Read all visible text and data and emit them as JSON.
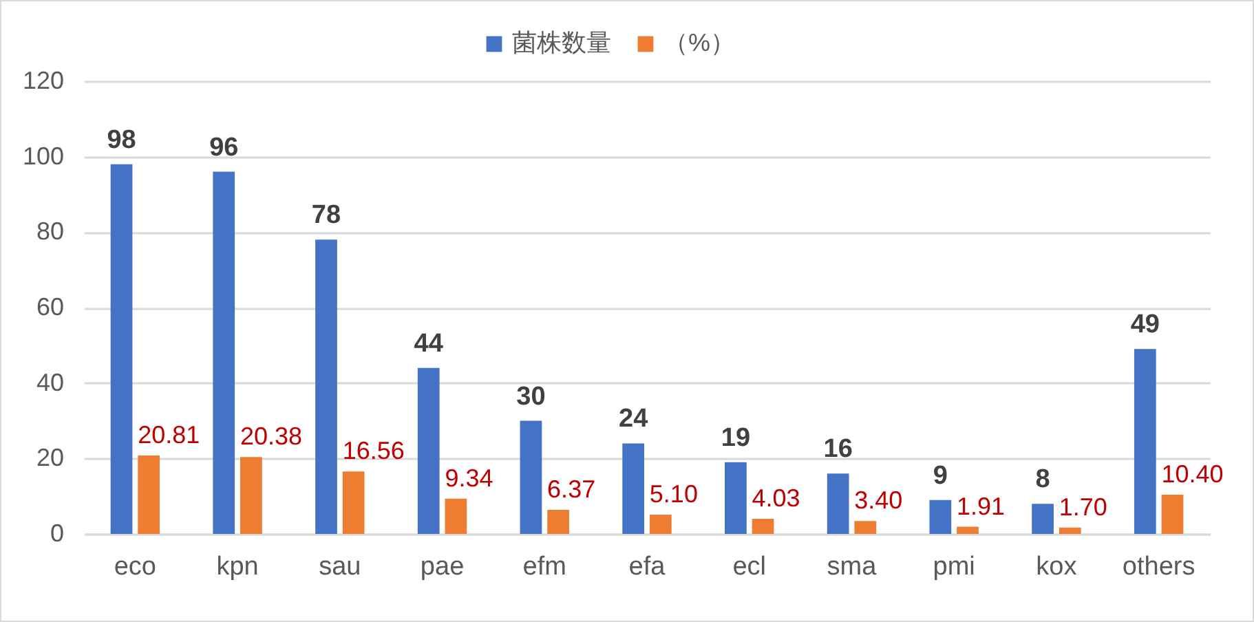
{
  "chart_data": {
    "type": "bar",
    "categories": [
      "eco",
      "kpn",
      "sau",
      "pae",
      "efm",
      "efa",
      "ecl",
      "sma",
      "pmi",
      "kox",
      "others"
    ],
    "series": [
      {
        "name": "菌株数量",
        "color": "#4472c4",
        "values": [
          98,
          96,
          78,
          44,
          30,
          24,
          19,
          16,
          9,
          8,
          49
        ],
        "value_labels": [
          "98",
          "96",
          "78",
          "44",
          "30",
          "24",
          "19",
          "16",
          "9",
          "8",
          "49"
        ]
      },
      {
        "name": "（%）",
        "color": "#ed7d31",
        "values": [
          20.81,
          20.38,
          16.56,
          9.34,
          6.37,
          5.1,
          4.03,
          3.4,
          1.91,
          1.7,
          10.4
        ],
        "value_labels": [
          "20.81",
          "20.38",
          "16.56",
          "9.34",
          "6.37",
          "5.10",
          "4.03",
          "3.40",
          "1.91",
          "1.70",
          "10.40"
        ]
      }
    ],
    "ylim": [
      0,
      120
    ],
    "yticks": [
      0,
      20,
      40,
      60,
      80,
      100,
      120
    ],
    "grid": "y",
    "legend": "top"
  }
}
